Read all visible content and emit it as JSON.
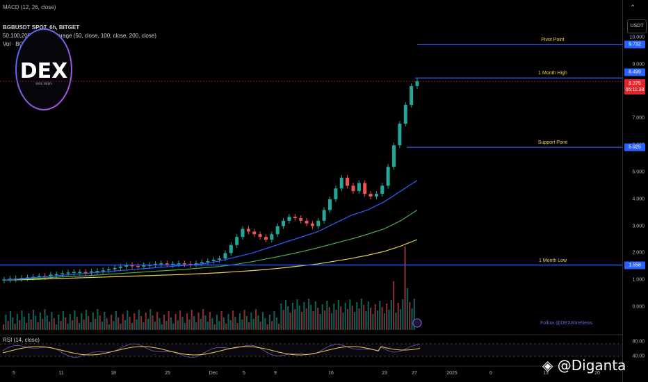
{
  "header": {
    "macd_title": "MACD (12, 26, close)",
    "symbol": "BGBUSDT SPOT, 6h, BITGET",
    "ma_title": "50,100,200 Moving Average (50, close, 100, close, 200, close)",
    "vol_title": "Vol · BGB",
    "rsi_title": "RSI (14, close)"
  },
  "axis": {
    "currency": "USDT",
    "price_ticks": [
      "10.000",
      "9.000",
      "8.000",
      "7.000",
      "6.000",
      "5.000",
      "4.000",
      "3.000",
      "2.000",
      "1.000",
      "0.000"
    ],
    "rsi_ticks": [
      "80.00",
      "40.00"
    ],
    "x_labels": [
      "5",
      "11",
      "18",
      "25",
      "Dec",
      "5",
      "9",
      "16",
      "23",
      "27",
      "2025",
      "6",
      "13",
      "20"
    ]
  },
  "price_tags": {
    "pivot": "9.732",
    "high": "8.499",
    "current_price": "8.375",
    "countdown": "05:11:38",
    "support": "5.925",
    "low": "1.558"
  },
  "levels": {
    "pivot_label": "Pivot Point",
    "high_label": "1 Month High",
    "support_label": "Support Point",
    "low_label": "1 Month Low"
  },
  "branding": {
    "logo_text": "DEX",
    "logo_sub": "WIRE NEWS",
    "follow": "Follow @DEXWireNews",
    "watermark": "@Diganta"
  },
  "colors": {
    "up": "#26a69a",
    "down": "#ef5350",
    "ma50": "#2962ff",
    "ma100": "#4caf50",
    "ma200": "#f0d34a",
    "level": "#2962ff",
    "rsi": "#7e57c2",
    "rsi_ma": "#f0d34a"
  },
  "chart_data": {
    "type": "line",
    "symbol": "BGBUSDT",
    "timeframe": "6h",
    "y_range": [
      0,
      10.5
    ],
    "levels": {
      "pivot": 9.732,
      "high": 8.499,
      "current": 8.375,
      "support": 5.925,
      "low": 1.558
    },
    "price_series": [
      1.02,
      1.05,
      1.06,
      1.08,
      1.1,
      1.12,
      1.15,
      1.14,
      1.2,
      1.22,
      1.25,
      1.28,
      1.3,
      1.3,
      1.28,
      1.32,
      1.34,
      1.36,
      1.4,
      1.45,
      1.5,
      1.55,
      1.52,
      1.5,
      1.55,
      1.56,
      1.6,
      1.62,
      1.58,
      1.6,
      1.62,
      1.6,
      1.58,
      1.62,
      1.66,
      1.7,
      1.75,
      1.8,
      2.0,
      2.3,
      2.6,
      2.9,
      2.8,
      2.7,
      2.6,
      2.5,
      2.7,
      3.0,
      3.2,
      3.35,
      3.3,
      3.2,
      3.1,
      3.0,
      3.2,
      3.6,
      4.0,
      4.4,
      4.8,
      4.5,
      4.3,
      4.6,
      4.2,
      4.1,
      4.2,
      4.5,
      5.2,
      6.0,
      6.8,
      7.5,
      8.2,
      8.375
    ],
    "ma50": [
      1.0,
      1.05,
      1.1,
      1.15,
      1.2,
      1.25,
      1.3,
      1.35,
      1.4,
      1.45,
      1.5,
      1.55,
      1.6,
      1.7,
      1.85,
      2.0,
      2.2,
      2.4,
      2.6,
      2.8,
      3.1,
      3.4,
      3.6,
      3.9,
      4.3,
      4.7
    ],
    "ma100": [
      1.0,
      1.03,
      1.06,
      1.1,
      1.13,
      1.16,
      1.2,
      1.24,
      1.28,
      1.32,
      1.36,
      1.4,
      1.45,
      1.5,
      1.58,
      1.68,
      1.8,
      1.92,
      2.05,
      2.2,
      2.36,
      2.52,
      2.7,
      2.9,
      3.2,
      3.6
    ],
    "ma200": [
      1.0,
      1.01,
      1.03,
      1.05,
      1.07,
      1.09,
      1.11,
      1.13,
      1.15,
      1.17,
      1.19,
      1.21,
      1.24,
      1.27,
      1.31,
      1.35,
      1.4,
      1.46,
      1.53,
      1.6,
      1.7,
      1.8,
      1.92,
      2.06,
      2.26,
      2.5
    ],
    "rsi_range": [
      0,
      100
    ]
  }
}
